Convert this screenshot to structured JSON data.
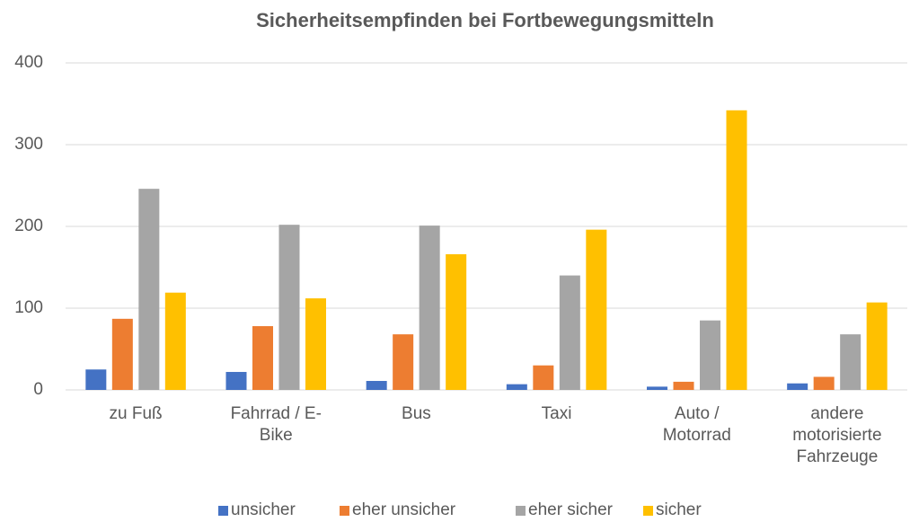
{
  "chart_data": {
    "type": "bar",
    "title": "Sicherheitsempfinden bei Fortbewegungsmitteln",
    "categories": [
      "zu Fuß",
      "Fahrrad / E-Bike",
      "Bus",
      "Taxi",
      "Auto / Motorrad",
      "andere motorisierte Fahrzeuge"
    ],
    "series": [
      {
        "name": "unsicher",
        "color": "#4472c4",
        "values": [
          25,
          22,
          11,
          7,
          4,
          8
        ]
      },
      {
        "name": "eher unsicher",
        "color": "#ed7d31",
        "values": [
          87,
          78,
          68,
          30,
          10,
          16
        ]
      },
      {
        "name": "eher sicher",
        "color": "#a5a5a5",
        "values": [
          246,
          202,
          201,
          140,
          85,
          68
        ]
      },
      {
        "name": "sicher",
        "color": "#ffc000",
        "values": [
          119,
          112,
          166,
          196,
          342,
          107
        ]
      }
    ],
    "ylim": [
      0,
      400
    ],
    "yticks": [
      0,
      100,
      200,
      300,
      400
    ],
    "grid": true,
    "legend": "bottom"
  }
}
